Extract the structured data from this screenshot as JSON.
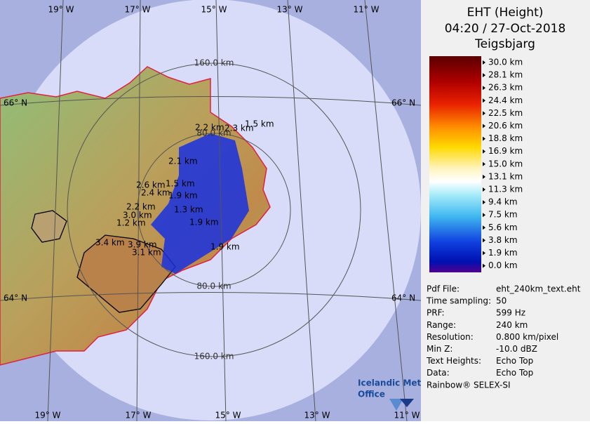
{
  "header": {
    "title": "EHT (Height)",
    "time": "04:20 / 27-Oct-2018",
    "station": "Teigsbjarg"
  },
  "legend": {
    "labels": [
      "30.0 km",
      "28.1 km",
      "26.3 km",
      "24.4 km",
      "22.5 km",
      "20.6 km",
      "18.8 km",
      "16.9 km",
      "15.0 km",
      "13.1 km",
      "11.3 km",
      "9.4 km",
      "7.5 km",
      "5.6 km",
      "3.8 km",
      "1.9 km",
      "0.0 km"
    ]
  },
  "info": {
    "rows": [
      [
        "Pdf File:",
        "eht_240km_text.eht"
      ],
      [
        "Time sampling:",
        "50"
      ],
      [
        "PRF:",
        "599 Hz"
      ],
      [
        "Range:",
        "240 km"
      ],
      [
        "Resolution:",
        "0.800 km/pixel"
      ],
      [
        "Min Z:",
        "-10.0 dBZ"
      ],
      [
        "Text Heights:",
        "Echo Top"
      ],
      [
        "Data:",
        "Echo Top"
      ]
    ]
  },
  "footer": "Rainbow® SELEX-SI",
  "logo": {
    "line1": "Icelandic Met",
    "line2": "Office"
  },
  "map": {
    "longitudes_top": [
      "19° W",
      "17° W",
      "15° W",
      "13° W",
      "11° W"
    ],
    "longitudes_bottom": [
      "19° W",
      "17° W",
      "15° W",
      "13° W",
      "11° W"
    ],
    "latitudes_left": [
      "66° N",
      "64° N"
    ],
    "latitudes_right": [
      "66° N",
      "64° N"
    ],
    "rings": [
      "160.0 km",
      "80.0 km",
      "80.0 km",
      "160.0 km"
    ],
    "echo_labels": [
      "1.5 km",
      "2.2 km",
      "2.3 km",
      "2.1 km",
      "2.6 km",
      "2.4 km",
      "1.5 km",
      "1.9 km",
      "2.2 km",
      "3.0 km",
      "1.2 km",
      "1.3 km",
      "3.4 km",
      "3.9 km",
      "3.1 km",
      "1.9 km",
      "1.9 km"
    ]
  }
}
